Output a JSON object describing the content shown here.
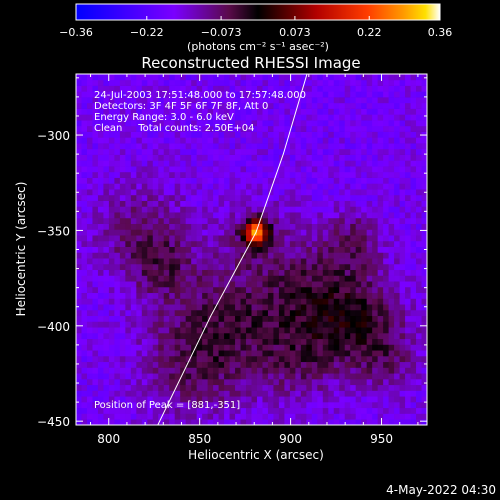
{
  "chart_data": {
    "type": "heatmap",
    "title": "Reconstructed RHESSI Image",
    "xlabel": "Heliocentric X (arcsec)",
    "ylabel": "Heliocentric Y (arcsec)",
    "xlim": [
      782,
      975
    ],
    "ylim": [
      -452,
      -268
    ],
    "x_ticks": [
      800,
      850,
      900,
      950
    ],
    "y_ticks": [
      -300,
      -350,
      -400,
      -450
    ],
    "x_tick_labels": [
      "800",
      "850",
      "900",
      "950"
    ],
    "y_tick_labels": [
      "−300",
      "−350",
      "−400",
      "−450"
    ],
    "colorbar": {
      "range": [
        -0.36,
        0.36
      ],
      "ticks": [
        -0.36,
        -0.22,
        -0.073,
        0.073,
        0.22,
        0.36
      ],
      "tick_labels": [
        "−0.36",
        "−0.22",
        "−0.073",
        "0.073",
        "0.22",
        "0.36"
      ],
      "unit_label": "(photons cm⁻² s⁻¹ asec⁻²)",
      "colormap": "rhessi-blue-purple-red-yellow-white"
    },
    "info_lines": [
      "24-Jul-2003 17:51:48.000 to 17:57:48.000",
      "Detectors: 3F 4F 5F 6F 7F 8F, Att 0",
      "Energy Range: 3.0 - 6.0 keV",
      "Clean     Total counts: 2.50E+04"
    ],
    "peak_label": "Position of Peak = [881,-351]",
    "peak": {
      "x": 881,
      "y": -351,
      "value": 0.36
    },
    "limb": [
      [
        827,
        -452
      ],
      [
        856,
        -395
      ],
      [
        881,
        -351
      ],
      [
        896,
        -310
      ],
      [
        909,
        -268
      ]
    ],
    "sources": [
      {
        "x": 881,
        "y": -351,
        "sigma": 4.5,
        "amp": 0.36
      },
      {
        "x": 881,
        "y": -351,
        "sigma": 12,
        "amp": 0.07
      },
      {
        "x": 868,
        "y": -397,
        "sigma": 25,
        "amp": 0.1
      },
      {
        "x": 818,
        "y": -352,
        "sigma": 18,
        "amp": 0.09
      },
      {
        "x": 917,
        "y": -385,
        "sigma": 22,
        "amp": 0.12
      },
      {
        "x": 940,
        "y": -401,
        "sigma": 16,
        "amp": 0.1
      },
      {
        "x": 935,
        "y": -355,
        "sigma": 10,
        "amp": 0.08
      },
      {
        "x": 845,
        "y": -420,
        "sigma": 20,
        "amp": 0.08
      },
      {
        "x": 830,
        "y": -370,
        "sigma": 12,
        "amp": 0.06
      },
      {
        "x": 905,
        "y": -420,
        "sigma": 15,
        "amp": 0.06
      },
      {
        "x": 955,
        "y": -420,
        "sigma": 12,
        "amp": 0.06
      }
    ],
    "background_level": -0.17,
    "grid": false
  },
  "footer": {
    "date": "4-May-2022 04:30"
  }
}
